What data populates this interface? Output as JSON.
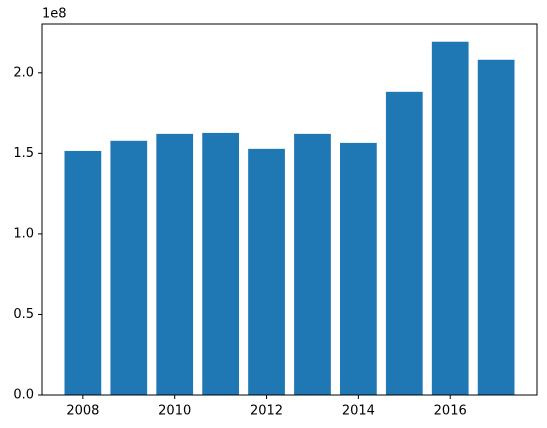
{
  "chart_data": {
    "type": "bar",
    "x": [
      2008,
      2009,
      2010,
      2011,
      2012,
      2013,
      2014,
      2015,
      2016,
      2017
    ],
    "values": [
      1.515,
      1.578,
      1.621,
      1.627,
      1.528,
      1.621,
      1.565,
      1.882,
      2.193,
      2.081
    ],
    "color": "#1f77b4",
    "xlim": [
      2007.11,
      2017.89
    ],
    "xticks": [
      2008,
      2010,
      2012,
      2014,
      2016
    ],
    "ylim": [
      0,
      2.303
    ],
    "yticks": [
      {
        "value": 0,
        "label": "0.0"
      },
      {
        "value": 0.5,
        "label": "0.5"
      },
      {
        "value": 1,
        "label": "1.0"
      },
      {
        "value": 1.5,
        "label": "1.5"
      },
      {
        "value": 2,
        "label": "2.0"
      }
    ],
    "y_offset_label": "1e8",
    "grid": false
  }
}
